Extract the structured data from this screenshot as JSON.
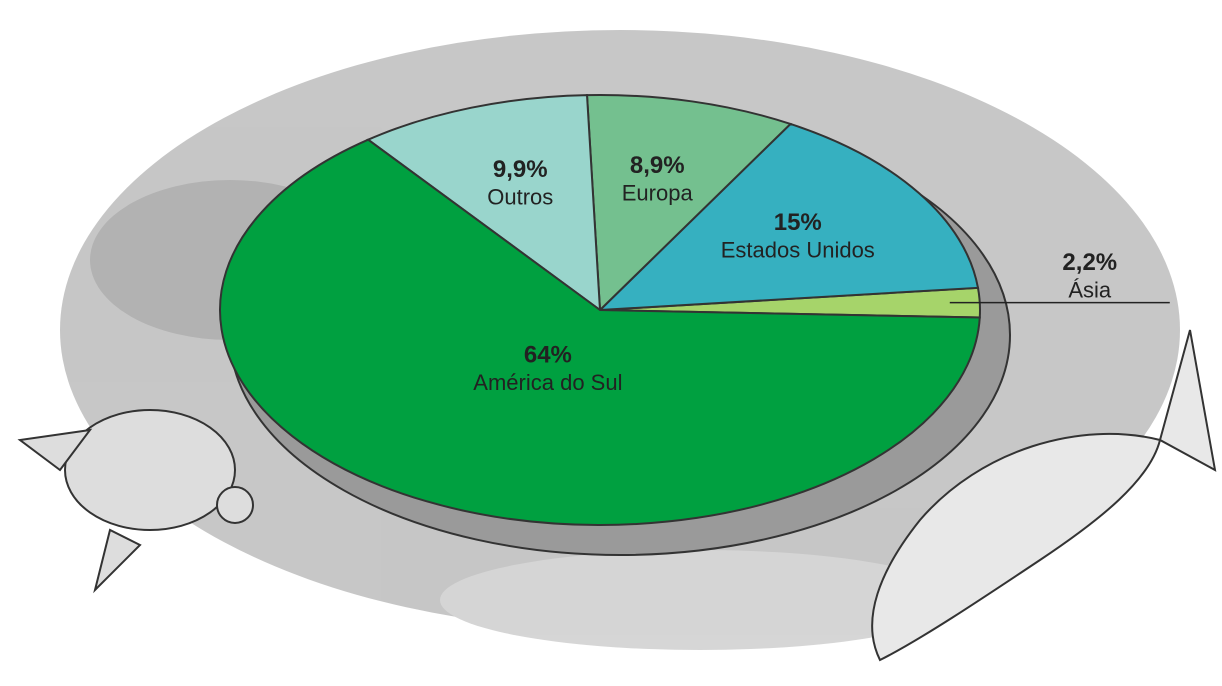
{
  "chart_data": {
    "type": "pie",
    "categories": [
      "Ásia",
      "Estados Unidos",
      "Europa",
      "Outros",
      "América do Sul"
    ],
    "values": [
      2.2,
      15,
      8.9,
      9.9,
      64
    ],
    "value_labels": [
      "2,2%",
      "15%",
      "8,9%",
      "9,9%",
      "64%"
    ],
    "colors": [
      "#a6d46a",
      "#36b0c0",
      "#74c08f",
      "#99d5cc",
      "#00a040"
    ]
  }
}
